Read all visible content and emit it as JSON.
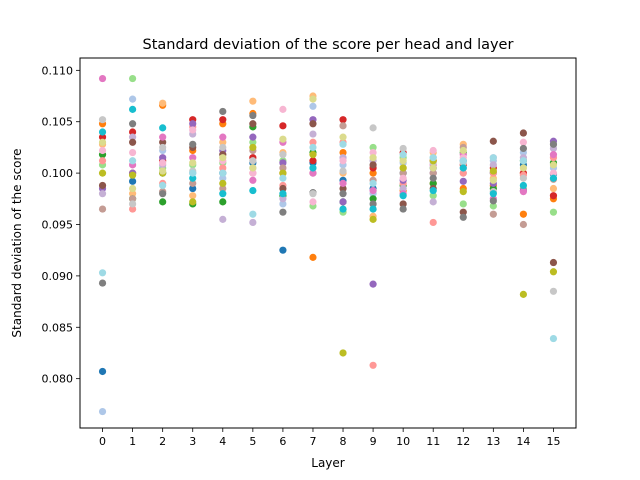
{
  "chart_data": {
    "type": "scatter",
    "title": "Standard deviation of the score per head and layer",
    "xlabel": "Layer",
    "ylabel": "Standard deviation of the score",
    "xlim": [
      -0.75,
      15.75
    ],
    "ylim": [
      0.0752,
      0.1112
    ],
    "grid": false,
    "legend": "none",
    "x_ticks": [
      0,
      1,
      2,
      3,
      4,
      5,
      6,
      7,
      8,
      9,
      10,
      11,
      12,
      13,
      14,
      15
    ],
    "y_ticks": [
      0.08,
      0.085,
      0.09,
      0.095,
      0.1,
      0.105,
      0.11
    ],
    "y_tick_labels": [
      "0.080",
      "0.085",
      "0.090",
      "0.095",
      "0.100",
      "0.105",
      "0.110"
    ],
    "head_colors": [
      "#1f77b4",
      "#aec7e8",
      "#ff7f0e",
      "#ffbb78",
      "#2ca02c",
      "#98df8a",
      "#d62728",
      "#ff9896",
      "#9467bd",
      "#c5b0d5",
      "#8c564b",
      "#c49c94",
      "#e377c2",
      "#f7b6d2",
      "#7f7f7f",
      "#c7c7c7",
      "#bcbd22",
      "#dbdb8d",
      "#17becf",
      "#9edae5"
    ],
    "series": [
      {
        "layer": 0,
        "values": [
          0.0807,
          0.0768,
          0.1048,
          0.1028,
          0.1018,
          0.1008,
          0.1035,
          0.1012,
          0.0985,
          0.098,
          0.0988,
          0.0965,
          0.1092,
          0.1022,
          0.0893,
          0.1052,
          0.1,
          0.103,
          0.104,
          0.0903
        ]
      },
      {
        "layer": 1,
        "values": [
          0.0992,
          0.1072,
          0.1,
          0.098,
          0.0975,
          0.1092,
          0.104,
          0.0965,
          0.1,
          0.1035,
          0.103,
          0.0975,
          0.1008,
          0.102,
          0.1048,
          0.097,
          0.0998,
          0.0985,
          0.1062,
          0.1012
        ]
      },
      {
        "layer": 2,
        "values": [
          0.1,
          0.1022,
          0.1066,
          0.1068,
          0.0972,
          0.1005,
          0.1012,
          0.099,
          0.1015,
          0.1008,
          0.103,
          0.0982,
          0.1035,
          0.101,
          0.098,
          0.1025,
          0.1,
          0.1002,
          0.1044,
          0.0988
        ]
      },
      {
        "layer": 3,
        "values": [
          0.0985,
          0.1,
          0.1022,
          0.0978,
          0.097,
          0.1008,
          0.1052,
          0.1045,
          0.1048,
          0.1038,
          0.1025,
          0.099,
          0.1015,
          0.1042,
          0.1028,
          0.1002,
          0.0972,
          0.101,
          0.0995,
          0.1
        ]
      },
      {
        "layer": 4,
        "values": [
          0.1,
          0.0995,
          0.1048,
          0.103,
          0.0972,
          0.101,
          0.1052,
          0.1005,
          0.1022,
          0.0955,
          0.1018,
          0.0985,
          0.1035,
          0.1012,
          0.106,
          0.1025,
          0.099,
          0.1015,
          0.098,
          0.1
        ]
      },
      {
        "layer": 5,
        "values": [
          0.101,
          0.1005,
          0.1058,
          0.107,
          0.1045,
          0.103,
          0.1015,
          0.1,
          0.1035,
          0.0952,
          0.1048,
          0.1022,
          0.0993,
          0.1,
          0.1056,
          0.1012,
          0.1025,
          0.1005,
          0.0983,
          0.096
        ]
      },
      {
        "layer": 6,
        "values": [
          0.0925,
          0.097,
          0.1,
          0.102,
          0.0978,
          0.1012,
          0.1046,
          0.0988,
          0.101,
          0.0975,
          0.0985,
          0.1005,
          0.103,
          0.1062,
          0.0962,
          0.1018,
          0.1,
          0.1033,
          0.098,
          0.0995
        ]
      },
      {
        "layer": 7,
        "values": [
          0.101,
          0.1065,
          0.0918,
          0.1075,
          0.102,
          0.0968,
          0.1012,
          0.103,
          0.1052,
          0.1038,
          0.1048,
          0.1,
          0.1,
          0.0972,
          0.0981,
          0.098,
          0.1018,
          0.1072,
          0.1005,
          0.1025
        ]
      },
      {
        "layer": 8,
        "values": [
          0.0993,
          0.1008,
          0.102,
          0.1,
          0.0972,
          0.0962,
          0.1052,
          0.103,
          0.0972,
          0.1015,
          0.0985,
          0.1046,
          0.099,
          0.1012,
          0.098,
          0.1002,
          0.0825,
          0.1035,
          0.0965,
          0.1028
        ]
      },
      {
        "layer": 9,
        "values": [
          0.0985,
          0.098,
          0.1,
          0.0958,
          0.0975,
          0.1025,
          0.1005,
          0.0813,
          0.0892,
          0.1012,
          0.1008,
          0.0993,
          0.0983,
          0.102,
          0.097,
          0.1044,
          0.0955,
          0.1015,
          0.0965,
          0.099
        ]
      },
      {
        "layer": 10,
        "values": [
          0.1,
          0.101,
          0.0983,
          0.1005,
          0.0988,
          0.1015,
          0.102,
          0.099,
          0.0993,
          0.0985,
          0.097,
          0.1,
          0.098,
          0.0995,
          0.0965,
          0.1024,
          0.1005,
          0.1012,
          0.0978,
          0.1018
        ]
      },
      {
        "layer": 11,
        "values": [
          0.1005,
          0.1015,
          0.099,
          0.102,
          0.099,
          0.0978,
          0.1012,
          0.0952,
          0.1,
          0.0972,
          0.0985,
          0.1,
          0.1008,
          0.1022,
          0.0995,
          0.101,
          0.1012,
          0.1005,
          0.0983,
          0.1015
        ]
      },
      {
        "layer": 12,
        "values": [
          0.1012,
          0.1,
          0.0985,
          0.1028,
          0.102,
          0.097,
          0.1008,
          0.1,
          0.0992,
          0.1005,
          0.0962,
          0.1025,
          0.1018,
          0.1015,
          0.0957,
          0.101,
          0.0982,
          0.1022,
          0.1005,
          0.1012
        ]
      },
      {
        "layer": 13,
        "values": [
          0.1,
          0.1012,
          0.0988,
          0.0995,
          0.0985,
          0.0968,
          0.1005,
          0.1,
          0.099,
          0.1008,
          0.1031,
          0.096,
          0.0975,
          0.1015,
          0.0973,
          0.0982,
          0.1002,
          0.0993,
          0.098,
          0.1015
        ]
      },
      {
        "layer": 14,
        "values": [
          0.1008,
          0.102,
          0.096,
          0.1,
          0.1012,
          0.0985,
          0.1,
          0.0998,
          0.0983,
          0.1015,
          0.1039,
          0.095,
          0.0982,
          0.103,
          0.1024,
          0.0995,
          0.0882,
          0.1005,
          0.0988,
          0.1012
        ]
      },
      {
        "layer": 15,
        "values": [
          0.0999,
          0.1005,
          0.0975,
          0.0985,
          0.101,
          0.0962,
          0.0978,
          0.1015,
          0.1031,
          0.1024,
          0.0913,
          0.0994,
          0.1018,
          0.1,
          0.1028,
          0.0885,
          0.0904,
          0.1008,
          0.0995,
          0.0839
        ]
      }
    ]
  }
}
